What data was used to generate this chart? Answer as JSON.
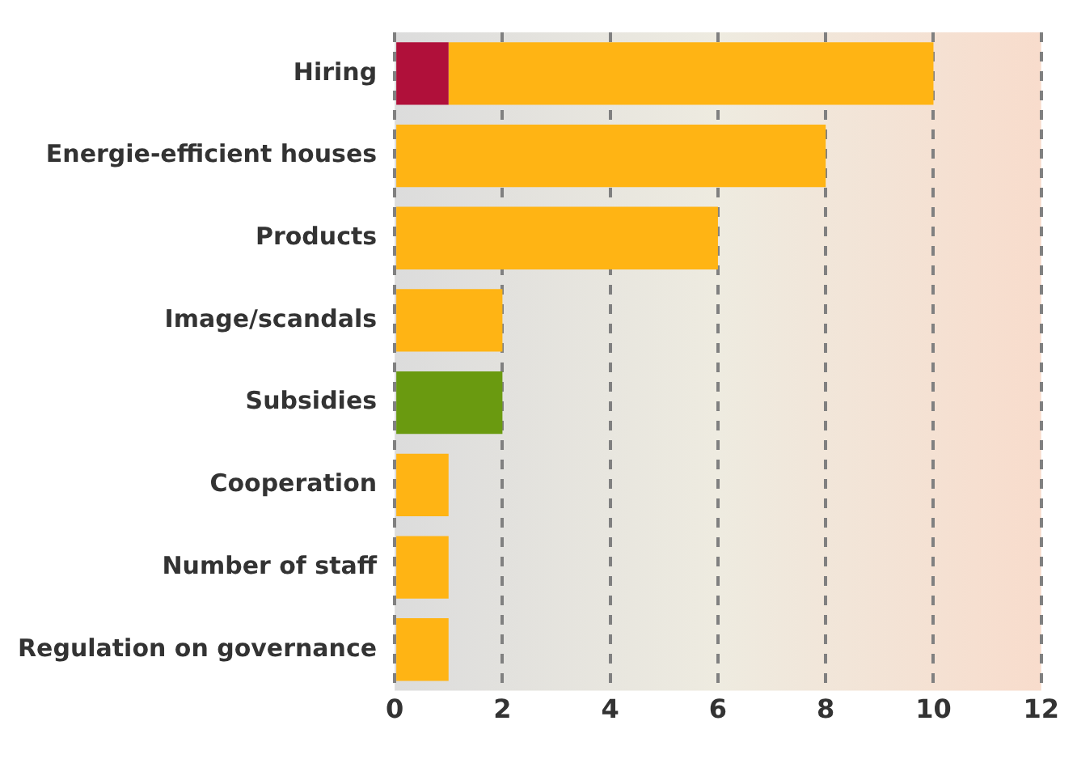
{
  "chart_data": {
    "type": "bar",
    "orientation": "horizontal",
    "stacked": true,
    "categories": [
      "Hiring",
      "Energie-efficient houses",
      "Products",
      "Image/scandals",
      "Subsidies",
      "Cooperation",
      "Number of staff",
      "Regulation on governance"
    ],
    "series": [
      {
        "color": "#b0103a",
        "values": [
          1,
          null,
          null,
          null,
          null,
          null,
          null,
          null
        ]
      },
      {
        "color": "#ffb414",
        "values": [
          9,
          8,
          6,
          2,
          null,
          1,
          1,
          1
        ]
      },
      {
        "color": "#6a9a10",
        "values": [
          null,
          null,
          null,
          null,
          2,
          null,
          null,
          null
        ]
      }
    ],
    "xlim": [
      0,
      12
    ],
    "xticks": [
      0,
      2,
      4,
      6,
      8,
      10,
      12
    ],
    "grid": "x",
    "legend": false
  }
}
